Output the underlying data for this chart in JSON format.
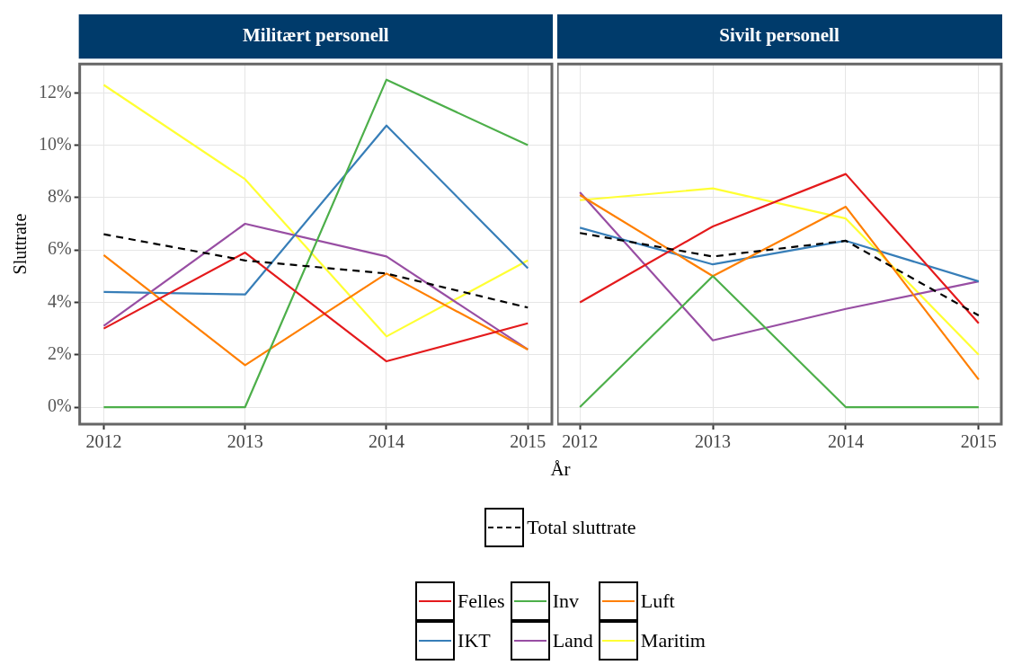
{
  "chart_data": [
    {
      "type": "line",
      "title": "Militært personell",
      "ylabel": "Sluttrate",
      "xlabel": "År",
      "x": [
        2012,
        2013,
        2014,
        2015
      ],
      "xlim": [
        2011.83,
        2015.17
      ],
      "xticks": [
        2012,
        2013,
        2014,
        2015
      ],
      "ylim": [
        -0.65,
        13.1
      ],
      "yticks": [
        {
          "value": 0,
          "label": "0%"
        },
        {
          "value": 2,
          "label": "2%"
        },
        {
          "value": 4,
          "label": "4%"
        },
        {
          "value": 6,
          "label": "6%"
        },
        {
          "value": 8,
          "label": "8%"
        },
        {
          "value": 10,
          "label": "10%"
        },
        {
          "value": 12,
          "label": "12%"
        }
      ],
      "grid": true,
      "legend": "bottom",
      "series": [
        {
          "name": "Total sluttrate",
          "color": "#000000",
          "line_style": "dashed",
          "values": [
            6.6,
            5.6,
            5.1,
            3.8
          ]
        },
        {
          "name": "Felles",
          "color": "#e41a1c",
          "values": [
            3.0,
            5.9,
            1.75,
            3.2
          ]
        },
        {
          "name": "Inv",
          "color": "#4daf4a",
          "values": [
            0,
            0,
            12.5,
            10.0
          ]
        },
        {
          "name": "Luft",
          "color": "#ff7f00",
          "values": [
            5.8,
            1.6,
            5.1,
            2.2
          ]
        },
        {
          "name": "IKT",
          "color": "#377eb8",
          "values": [
            4.4,
            4.3,
            10.75,
            5.3
          ]
        },
        {
          "name": "Land",
          "color": "#984ea3",
          "values": [
            3.1,
            7.0,
            5.75,
            2.2
          ]
        },
        {
          "name": "Maritim",
          "color": "#ffff33",
          "values": [
            12.3,
            8.7,
            2.7,
            5.6
          ]
        }
      ]
    },
    {
      "type": "line",
      "title": "Sivilt personell",
      "x": [
        2012,
        2013,
        2014,
        2015
      ],
      "xlim": [
        2011.83,
        2015.17
      ],
      "xticks": [
        2012,
        2013,
        2014,
        2015
      ],
      "ylim": [
        -0.65,
        13.1
      ],
      "yticks": [
        0,
        2,
        4,
        6,
        8,
        10,
        12
      ],
      "tick_labels": "x",
      "grid": true,
      "legend": "bottom",
      "series": [
        {
          "name": "Total sluttrate",
          "color": "#000000",
          "line_style": "dashed",
          "values": [
            6.65,
            5.75,
            6.35,
            3.5
          ]
        },
        {
          "name": "Felles",
          "color": "#e41a1c",
          "values": [
            4.0,
            6.9,
            8.9,
            3.2
          ]
        },
        {
          "name": "Inv",
          "color": "#4daf4a",
          "values": [
            0,
            5.0,
            0,
            0
          ]
        },
        {
          "name": "Luft",
          "color": "#ff7f00",
          "values": [
            8.1,
            5.0,
            7.65,
            1.05
          ]
        },
        {
          "name": "IKT",
          "color": "#377eb8",
          "values": [
            6.85,
            5.45,
            6.35,
            4.8
          ]
        },
        {
          "name": "Land",
          "color": "#984ea3",
          "values": [
            8.2,
            2.55,
            3.75,
            4.8
          ]
        },
        {
          "name": "Maritim",
          "color": "#ffff33",
          "values": [
            7.9,
            8.35,
            7.2,
            2.0
          ]
        }
      ]
    }
  ]
}
